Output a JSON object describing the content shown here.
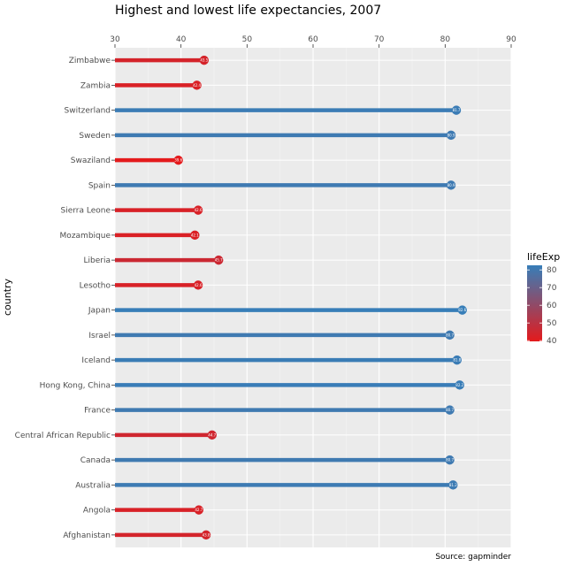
{
  "chart_data": {
    "type": "lollipop",
    "title": "Highest and lowest life expectancies, 2007",
    "xlabel": "",
    "ylabel": "country",
    "caption": "Source: gapminder",
    "xlim": [
      30,
      90
    ],
    "x_ticks": [
      "30",
      "40",
      "50",
      "60",
      "70",
      "80",
      "90"
    ],
    "x_axis_position": "top",
    "grid": true,
    "legend": {
      "title": "lifeExp",
      "position": "right",
      "range": [
        39.6,
        82.6
      ],
      "breaks": [
        "80",
        "70",
        "60",
        "50",
        "40"
      ],
      "break_values": [
        80,
        70,
        60,
        50,
        40
      ],
      "low_color": "#e41a1c",
      "high_color": "#377eb8"
    },
    "categories": [
      "Zimbabwe",
      "Zambia",
      "Switzerland",
      "Sweden",
      "Swaziland",
      "Spain",
      "Sierra Leone",
      "Mozambique",
      "Liberia",
      "Lesotho",
      "Japan",
      "Israel",
      "Iceland",
      "Hong Kong, China",
      "France",
      "Central African Republic",
      "Canada",
      "Australia",
      "Angola",
      "Afghanistan"
    ],
    "values": [
      43.5,
      42.4,
      81.7,
      80.9,
      39.6,
      80.9,
      42.6,
      42.1,
      45.7,
      42.6,
      82.6,
      80.7,
      81.8,
      82.2,
      80.7,
      44.7,
      80.7,
      81.2,
      42.7,
      43.8
    ],
    "data_labels": [
      "43.5",
      "42.4",
      "81.7",
      "80.9",
      "39.6",
      "80.9",
      "42.6",
      "42.1",
      "45.7",
      "42.6",
      "82.6",
      "80.7",
      "81.8",
      "82.2",
      "80.7",
      "44.7",
      "80.7",
      "81.2",
      "42.7",
      "43.8"
    ]
  }
}
